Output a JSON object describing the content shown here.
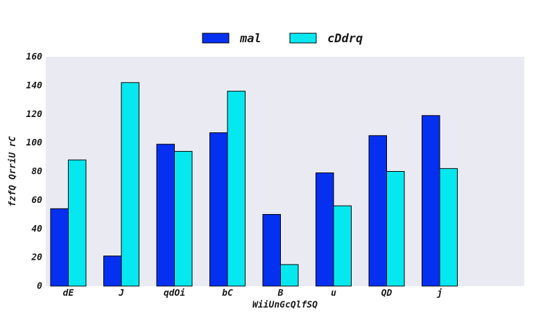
{
  "chart_data": {
    "type": "bar",
    "categories": [
      "dE",
      "J",
      "qdOi",
      "bC",
      "B",
      "u",
      "QD",
      "j"
    ],
    "series": [
      {
        "name": "mal",
        "color": "#0530f0",
        "values": [
          54,
          21,
          99,
          107,
          50,
          79,
          105,
          119
        ]
      },
      {
        "name": "cDdrq",
        "color": "#05e8f0",
        "values": [
          88,
          142,
          94,
          136,
          15,
          56,
          80,
          82
        ]
      }
    ],
    "xlabel": "WiiUnGcQlfSQ",
    "ylabel": "fzfQ QrriU rC",
    "ylim": [
      0,
      160
    ],
    "yticks": [
      0,
      20,
      40,
      60,
      80,
      100,
      120,
      140,
      160
    ],
    "grid": false,
    "legend": "top-center",
    "background": "#eaeaf2"
  }
}
